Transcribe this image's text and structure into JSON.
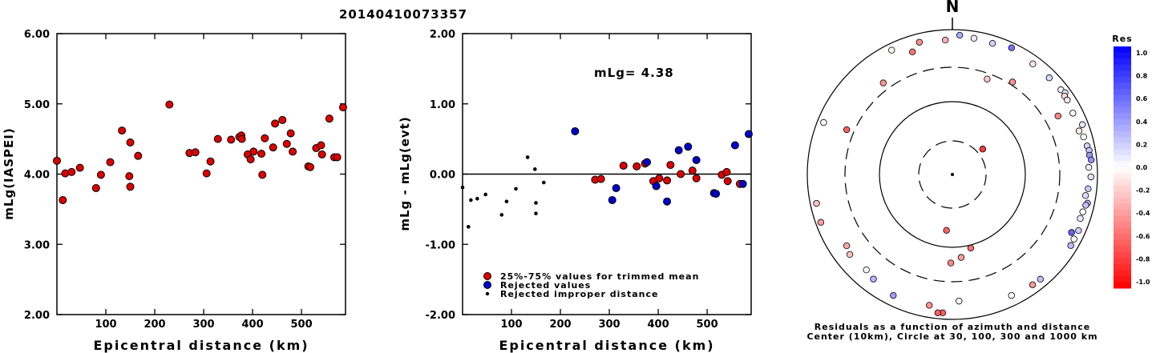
{
  "title": "20140410073357",
  "chart_data": [
    {
      "type": "scatter",
      "name_id": "left",
      "title": "",
      "xlabel": "Epicentral distance (km)",
      "ylabel": "mLg(IASPEI)",
      "xlim": [
        0,
        590
      ],
      "ylim": [
        2.0,
        6.0
      ],
      "x_ticks": [
        100,
        200,
        300,
        400,
        500
      ],
      "x_tick_labels": [
        "100",
        "200",
        "300",
        "400",
        "500"
      ],
      "y_ticks": [
        2,
        3,
        4,
        5,
        6
      ],
      "y_tick_labels": [
        "2.00",
        "3.00",
        "4.00",
        "5.00",
        "6.00"
      ],
      "series": [
        {
          "color": "#dd0000",
          "x": [
            0,
            12,
            17,
            30,
            47,
            80,
            90,
            109,
            133,
            148,
            150,
            150,
            166,
            230,
            271,
            283,
            306,
            314,
            329,
            356,
            373,
            377,
            378,
            390,
            396,
            402,
            418,
            420,
            425,
            442,
            446,
            461,
            470,
            478,
            482,
            514,
            518,
            530,
            540,
            542,
            557,
            567,
            573,
            585
          ],
          "y": [
            4.19,
            3.63,
            4.01,
            4.03,
            4.09,
            3.8,
            3.99,
            4.17,
            4.62,
            3.97,
            4.45,
            3.82,
            4.26,
            4.99,
            4.3,
            4.31,
            4.01,
            4.18,
            4.5,
            4.49,
            4.53,
            4.55,
            4.5,
            4.28,
            4.21,
            4.32,
            4.29,
            3.99,
            4.51,
            4.38,
            4.72,
            4.77,
            4.43,
            4.58,
            4.32,
            4.11,
            4.1,
            4.37,
            4.41,
            4.28,
            4.79,
            4.24,
            4.24,
            4.95
          ]
        }
      ]
    },
    {
      "type": "scatter",
      "name_id": "middle",
      "title": "",
      "xlabel": "Epicentral distance (km)",
      "ylabel": "mLg - mLg(evt)",
      "xlim": [
        0,
        590
      ],
      "ylim": [
        -2.0,
        2.0
      ],
      "x_ticks": [
        100,
        200,
        300,
        400,
        500
      ],
      "x_tick_labels": [
        "100",
        "200",
        "300",
        "400",
        "500"
      ],
      "y_ticks": [
        -2,
        -1,
        0,
        1,
        2
      ],
      "y_tick_labels": [
        "-2.00",
        "-1.00",
        "0.00",
        "1.00",
        "2.00"
      ],
      "annotation": "mLg= 4.38",
      "legend": [
        "25%-75% values for trimmed mean",
        "Rejected values",
        "Rejected improper distance"
      ],
      "legend_position": "bottom-left",
      "series": [
        {
          "color": "#dd0000",
          "x": [
            271,
            283,
            329,
            356,
            373,
            390,
            396,
            402,
            418,
            425,
            446,
            470,
            478,
            530,
            540,
            542,
            567
          ],
          "y": [
            -0.08,
            -0.07,
            0.12,
            0.11,
            0.15,
            -0.1,
            -0.17,
            -0.06,
            -0.09,
            0.13,
            0.0,
            0.05,
            -0.06,
            -0.01,
            0.03,
            -0.1,
            -0.14
          ]
        },
        {
          "color": "#0000cc",
          "x": [
            230,
            306,
            314,
            377,
            396,
            418,
            442,
            461,
            478,
            514,
            518,
            557,
            573,
            585
          ],
          "y": [
            0.61,
            -0.37,
            -0.2,
            0.17,
            -0.17,
            -0.39,
            0.34,
            0.39,
            0.2,
            -0.27,
            -0.28,
            0.41,
            -0.14,
            0.57
          ]
        },
        {
          "color": "#000000",
          "x": [
            0,
            12,
            17,
            30,
            47,
            80,
            90,
            109,
            133,
            148,
            150,
            150,
            166
          ],
          "y": [
            -0.19,
            -0.75,
            -0.37,
            -0.35,
            -0.29,
            -0.58,
            -0.39,
            -0.21,
            0.24,
            0.07,
            -0.41,
            -0.56,
            -0.12
          ]
        }
      ]
    },
    {
      "type": "scatter",
      "name_id": "polar",
      "title": "",
      "caption_line1": "Residuals as a function of azimuth and distance",
      "caption_line2": "Center (10km), Circle at 30, 100, 300 and 1000 km",
      "north_label": "N",
      "colorbar_title": "Res",
      "colorbar_ticks": [
        "1.0",
        "0.8",
        "0.6",
        "0.4",
        "0.2",
        "0.0",
        "-0.2",
        "-0.4",
        "-0.6",
        "-0.8",
        "-1.0"
      ],
      "rings_km": [
        30,
        100,
        300,
        1000
      ],
      "points": [
        {
          "az": 50,
          "d": 36,
          "res": -0.76
        },
        {
          "az": 186,
          "d": 60,
          "res": -0.62
        },
        {
          "az": 166,
          "d": 110,
          "res": -0.56
        },
        {
          "az": 174,
          "d": 140,
          "res": -0.38
        },
        {
          "az": 181,
          "d": 165,
          "res": -0.47
        },
        {
          "az": 61,
          "d": 460,
          "res": -0.47
        },
        {
          "az": 20,
          "d": 250,
          "res": -0.22
        },
        {
          "az": 33,
          "d": 330,
          "res": -0.42
        },
        {
          "az": 293,
          "d": 380,
          "res": -0.62
        },
        {
          "az": 323,
          "d": 380,
          "res": -0.42
        },
        {
          "az": 342,
          "d": 600,
          "res": -0.55
        },
        {
          "az": 357,
          "d": 720,
          "res": -0.3
        },
        {
          "az": 346,
          "d": 760,
          "res": -0.44
        },
        {
          "az": 3,
          "d": 840,
          "res": 0.33
        },
        {
          "az": 9,
          "d": 800,
          "res": 0.08
        },
        {
          "az": 17,
          "d": 780,
          "res": 0.18
        },
        {
          "az": 25,
          "d": 850,
          "res": 0.55
        },
        {
          "az": 36,
          "d": 770,
          "res": -0.12
        },
        {
          "az": 45,
          "d": 770,
          "res": 0.15
        },
        {
          "az": 52,
          "d": 790,
          "res": 0.05
        },
        {
          "az": 54,
          "d": 830,
          "res": 0.12
        },
        {
          "az": 55,
          "d": 770,
          "res": -0.15
        },
        {
          "az": 57,
          "d": 770,
          "res": -0.08
        },
        {
          "az": 63,
          "d": 730,
          "res": 0.02
        },
        {
          "az": 69,
          "d": 830,
          "res": 0.11
        },
        {
          "az": 71,
          "d": 700,
          "res": -0.07
        },
        {
          "az": 74,
          "d": 760,
          "res": 0.0
        },
        {
          "az": 78,
          "d": 790,
          "res": 0.18
        },
        {
          "az": 80,
          "d": 820,
          "res": 0.23
        },
        {
          "az": 82,
          "d": 810,
          "res": 0.4
        },
        {
          "az": 84,
          "d": 840,
          "res": 0.43
        },
        {
          "az": 87,
          "d": 760,
          "res": 0.06
        },
        {
          "az": 91,
          "d": 810,
          "res": 0.1
        },
        {
          "az": 96,
          "d": 760,
          "res": 0.22
        },
        {
          "az": 99,
          "d": 720,
          "res": 0.14
        },
        {
          "az": 102,
          "d": 800,
          "res": 0.32
        },
        {
          "az": 103,
          "d": 770,
          "res": 0.24
        },
        {
          "az": 106,
          "d": 740,
          "res": 0.0
        },
        {
          "az": 109,
          "d": 730,
          "res": 0.08
        },
        {
          "az": 114,
          "d": 800,
          "res": 0.2
        },
        {
          "az": 116,
          "d": 670,
          "res": 0.62
        },
        {
          "az": 118,
          "d": 790,
          "res": 0.02
        },
        {
          "az": 121,
          "d": 800,
          "res": 0.26
        },
        {
          "az": 140,
          "d": 770,
          "res": 0.25
        },
        {
          "az": 144,
          "d": 760,
          "res": -0.4
        },
        {
          "az": 154,
          "d": 720,
          "res": 0.0
        },
        {
          "az": 177,
          "d": 560,
          "res": 0.03
        },
        {
          "az": 184,
          "d": 820,
          "res": -0.62
        },
        {
          "az": 186,
          "d": 830,
          "res": -0.62
        },
        {
          "az": 190,
          "d": 680,
          "res": -0.43
        },
        {
          "az": 206,
          "d": 720,
          "res": 0.38
        },
        {
          "az": 217,
          "d": 640,
          "res": 0.28
        },
        {
          "az": 222,
          "d": 590,
          "res": -0.02
        },
        {
          "az": 232,
          "d": 620,
          "res": -0.24
        },
        {
          "az": 236,
          "d": 570,
          "res": -0.35
        },
        {
          "az": 250,
          "d": 850,
          "res": -0.38
        },
        {
          "az": 258,
          "d": 820,
          "res": -0.24
        },
        {
          "az": 292,
          "d": 820,
          "res": 0.0
        },
        {
          "az": 334,
          "d": 810,
          "res": -0.06
        }
      ]
    }
  ]
}
